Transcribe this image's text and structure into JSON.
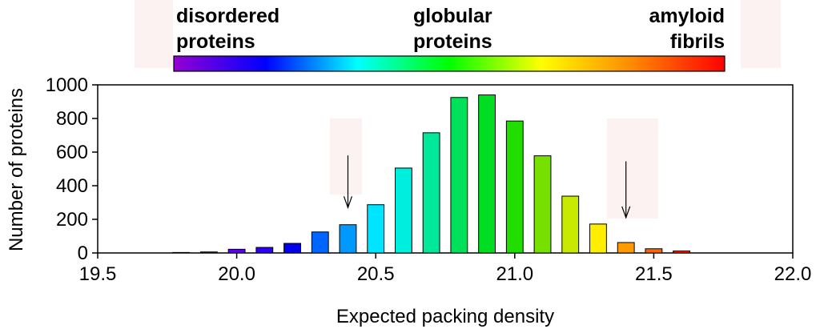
{
  "chart_data": {
    "type": "bar",
    "xlabel": "Expected packing density",
    "ylabel": "Number of proteins",
    "xlim": [
      19.5,
      22.0
    ],
    "ylim": [
      0,
      1000
    ],
    "x_ticks": [
      "19.5",
      "20.0",
      "20.5",
      "21.0",
      "21.5",
      "22.0"
    ],
    "y_ticks": [
      "0",
      "200",
      "400",
      "600",
      "800",
      "1000"
    ],
    "bar_width": 0.06,
    "series": [
      {
        "name": "proteins",
        "x": [
          19.8,
          19.9,
          20.0,
          20.1,
          20.2,
          20.3,
          20.4,
          20.5,
          20.6,
          20.7,
          20.8,
          20.9,
          21.0,
          21.1,
          21.2,
          21.3,
          21.4,
          21.5,
          21.6
        ],
        "values": [
          3,
          6,
          22,
          33,
          57,
          125,
          168,
          287,
          505,
          715,
          925,
          940,
          785,
          578,
          338,
          172,
          62,
          25,
          12
        ],
        "colors": [
          "#9400d3",
          "#7000e0",
          "#5a00ee",
          "#3000f5",
          "#0000ee",
          "#0066ff",
          "#0099ff",
          "#00e5ff",
          "#00eedd",
          "#00e89a",
          "#00e05a",
          "#00dd22",
          "#22dd00",
          "#77e000",
          "#c8ea00",
          "#ffee00",
          "#ff9900",
          "#ff6600",
          "#ff2200"
        ]
      }
    ],
    "annotations": [
      {
        "type": "arrow",
        "x": 20.4,
        "y_from": 580,
        "y_to": 270
      },
      {
        "type": "arrow",
        "x": 21.4,
        "y_from": 545,
        "y_to": 210
      }
    ],
    "colorbar": {
      "labels": [
        {
          "line1": "disordered",
          "line2": "proteins"
        },
        {
          "line1": "globular",
          "line2": "proteins"
        },
        {
          "line1": "amyloid",
          "line2": "fibrils"
        }
      ],
      "gradient": [
        "#9400d3",
        "#0000ff",
        "#00ffff",
        "#00ff00",
        "#ffff00",
        "#ff8800",
        "#ff0000"
      ]
    }
  }
}
